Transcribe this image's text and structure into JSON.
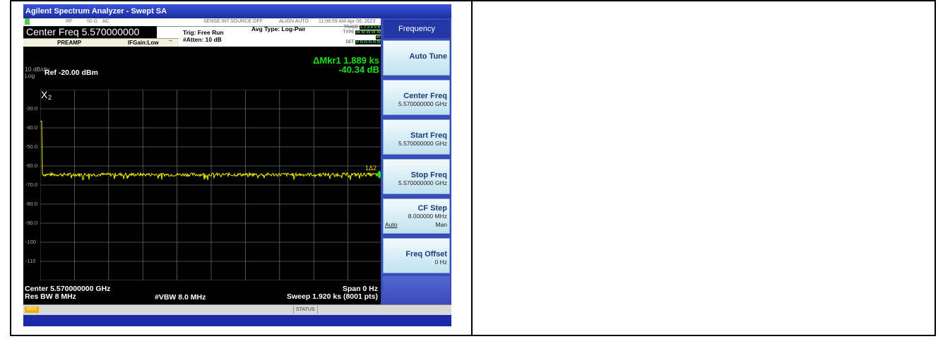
{
  "window": {
    "title": "Agilent Spectrum Analyzer - Swept SA"
  },
  "topbar": {
    "rf_label": "RF",
    "impedance": "50 Ω",
    "coupling": "AC",
    "sense": "SENSE:INT",
    "source": "SOURCE OFF",
    "align": "ALIGN AUTO",
    "datetime": "11:08:59 AM Apr 06, 2023",
    "center_freq": "Center Freq 5.570000000 GHz",
    "trig": "Trig: Free Run",
    "atten": "#Atten: 10 dB",
    "avg_type": "Avg Type: Log-Pwr",
    "preamp": "PREAMP",
    "ifgain": "IFGain:Low",
    "trace_label": "TRACE",
    "trace_seq": "1 2 3 4 5 6",
    "type_label": "TYPE",
    "type_seq": "W W W W W W",
    "det_label": "DET",
    "det_seq": "P N N N N N"
  },
  "screen": {
    "scale_line1": "10 dB/div",
    "scale_line2": "Log",
    "ref_level": "Ref -20.00 dBm",
    "marker_delta": "ΔMkr1 1.889 ks",
    "marker_value": "-40.34 dB",
    "marker2_label": "X",
    "marker2_sub": "2",
    "marker1_label": "1Δ2",
    "y_ticks": [
      "-30.0",
      "-40.0",
      "-50.0",
      "-60.0",
      "-70.0",
      "-80.0",
      "-90.0",
      "-100",
      "-110"
    ],
    "center_footer": "Center 5.570000000 GHz",
    "res_bw": "Res BW 8 MHz",
    "vbw": "#VBW 8.0 MHz",
    "span": "Span 0 Hz",
    "sweep": "Sweep  1.920 ks (8001 pts)"
  },
  "chart_data": {
    "type": "line",
    "ylim": [
      -120,
      -20
    ],
    "y_ticks": [
      -30,
      -40,
      -50,
      -60,
      -70,
      -80,
      -90,
      -100,
      -110
    ],
    "trace_color": "#f5f500",
    "noise_floor_dbm": -64.5,
    "initial_level_dbm": -36.5,
    "marker_color": "#19e019"
  },
  "softkeys": {
    "title": "Frequency",
    "auto_tune": "Auto Tune",
    "center_freq": "Center Freq",
    "center_freq_val": "5.570000000 GHz",
    "start_freq": "Start Freq",
    "start_freq_val": "5.570000000 GHz",
    "stop_freq": "Stop Freq",
    "stop_freq_val": "5.570000000 GHz",
    "cf_step": "CF Step",
    "cf_step_val": "8.000000 MHz",
    "cf_auto": "Auto",
    "cf_man": "Man",
    "freq_offset": "Freq Offset",
    "freq_offset_val": "0 Hz"
  },
  "statusbar": {
    "msg": "MSG",
    "status": "STATUS"
  }
}
